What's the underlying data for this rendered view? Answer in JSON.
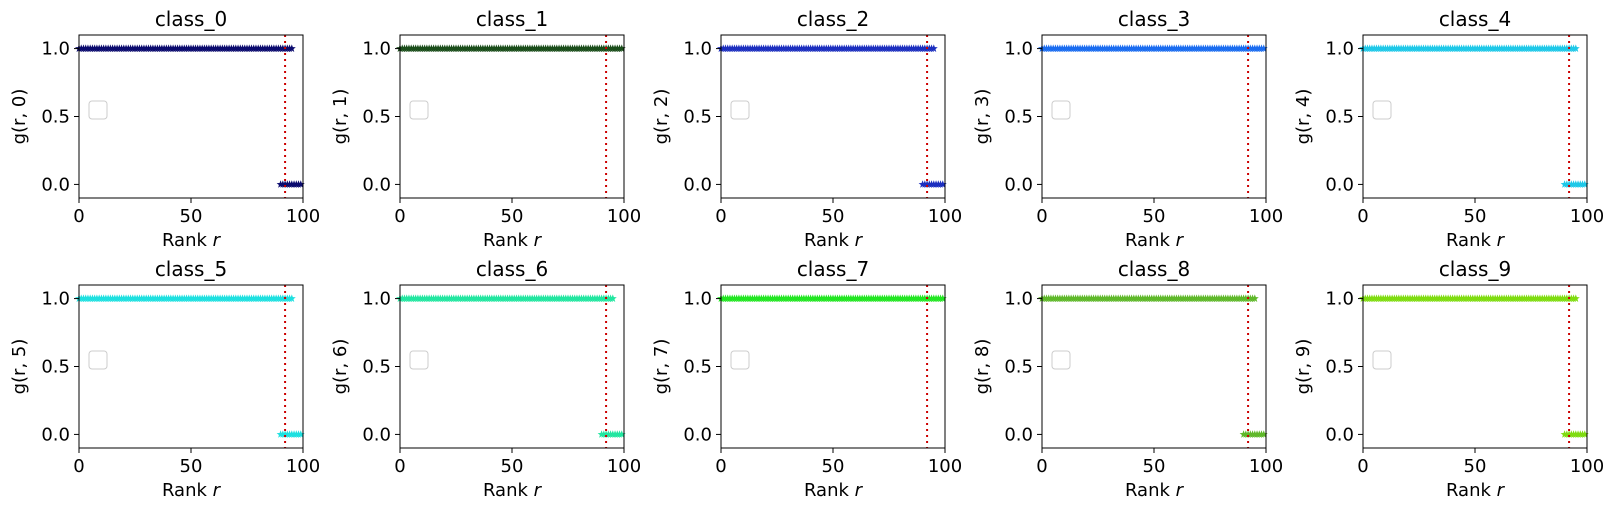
{
  "chart_data": [
    {
      "type": "scatter",
      "title": "class_0",
      "xlabel_text": "Rank ",
      "xlabel_var": "r",
      "ylabel": "g(r, 0)",
      "color": "#0b0b6e",
      "xlim": [
        0,
        100
      ],
      "ylim": [
        -0.1,
        1.1
      ],
      "xticks": [
        "0",
        "50",
        "100"
      ],
      "yticks": [
        "0.0",
        "0.5",
        "1.0"
      ],
      "series": [
        {
          "y": 1,
          "x_from": 0,
          "x_to": 95
        },
        {
          "y": 0,
          "x_from": 90,
          "x_to": 99
        }
      ],
      "vline_x": 92,
      "legend": "empty box, center-left"
    },
    {
      "type": "scatter",
      "title": "class_1",
      "xlabel_text": "Rank ",
      "xlabel_var": "r",
      "ylabel": "g(r, 1)",
      "color": "#1a4d1a",
      "xlim": [
        0,
        100
      ],
      "ylim": [
        -0.1,
        1.1
      ],
      "xticks": [
        "0",
        "50",
        "100"
      ],
      "yticks": [
        "0.0",
        "0.5",
        "1.0"
      ],
      "series": [
        {
          "y": 1,
          "x_from": 0,
          "x_to": 99
        }
      ],
      "vline_x": 92,
      "legend": "empty box, center-left"
    },
    {
      "type": "scatter",
      "title": "class_2",
      "xlabel_text": "Rank ",
      "xlabel_var": "r",
      "ylabel": "g(r, 2)",
      "color": "#1c2fbf",
      "xlim": [
        0,
        100
      ],
      "ylim": [
        -0.1,
        1.1
      ],
      "xticks": [
        "0",
        "50",
        "100"
      ],
      "yticks": [
        "0.0",
        "0.5",
        "1.0"
      ],
      "series": [
        {
          "y": 1,
          "x_from": 0,
          "x_to": 95
        },
        {
          "y": 0,
          "x_from": 90,
          "x_to": 99
        }
      ],
      "vline_x": 92,
      "legend": "empty box, center-left"
    },
    {
      "type": "scatter",
      "title": "class_3",
      "xlabel_text": "Rank ",
      "xlabel_var": "r",
      "ylabel": "g(r, 3)",
      "color": "#1a6cf0",
      "xlim": [
        0,
        100
      ],
      "ylim": [
        -0.1,
        1.1
      ],
      "xticks": [
        "0",
        "50",
        "100"
      ],
      "yticks": [
        "0.0",
        "0.5",
        "1.0"
      ],
      "series": [
        {
          "y": 1,
          "x_from": 0,
          "x_to": 99
        }
      ],
      "vline_x": 92,
      "legend": "empty box, center-left"
    },
    {
      "type": "scatter",
      "title": "class_4",
      "xlabel_text": "Rank ",
      "xlabel_var": "r",
      "ylabel": "g(r, 4)",
      "color": "#1ec8e8",
      "xlim": [
        0,
        100
      ],
      "ylim": [
        -0.1,
        1.1
      ],
      "xticks": [
        "0",
        "50",
        "100"
      ],
      "yticks": [
        "0.0",
        "0.5",
        "1.0"
      ],
      "series": [
        {
          "y": 1,
          "x_from": 0,
          "x_to": 95
        },
        {
          "y": 0,
          "x_from": 90,
          "x_to": 99
        }
      ],
      "vline_x": 92,
      "legend": "empty box, center-left"
    },
    {
      "type": "scatter",
      "title": "class_5",
      "xlabel_text": "Rank ",
      "xlabel_var": "r",
      "ylabel": "g(r, 5)",
      "color": "#1ee0e0",
      "xlim": [
        0,
        100
      ],
      "ylim": [
        -0.1,
        1.1
      ],
      "xticks": [
        "0",
        "50",
        "100"
      ],
      "yticks": [
        "0.0",
        "0.5",
        "1.0"
      ],
      "series": [
        {
          "y": 1,
          "x_from": 0,
          "x_to": 95
        },
        {
          "y": 0,
          "x_from": 90,
          "x_to": 99
        }
      ],
      "vline_x": 92,
      "legend": "empty box, center-left"
    },
    {
      "type": "scatter",
      "title": "class_6",
      "xlabel_text": "Rank ",
      "xlabel_var": "r",
      "ylabel": "g(r, 6)",
      "color": "#22e6a0",
      "xlim": [
        0,
        100
      ],
      "ylim": [
        -0.1,
        1.1
      ],
      "xticks": [
        "0",
        "50",
        "100"
      ],
      "yticks": [
        "0.0",
        "0.5",
        "1.0"
      ],
      "series": [
        {
          "y": 1,
          "x_from": 0,
          "x_to": 95
        },
        {
          "y": 0,
          "x_from": 90,
          "x_to": 99
        }
      ],
      "vline_x": 92,
      "legend": "empty box, center-left"
    },
    {
      "type": "scatter",
      "title": "class_7",
      "xlabel_text": "Rank ",
      "xlabel_var": "r",
      "ylabel": "g(r, 7)",
      "color": "#22e622",
      "xlim": [
        0,
        100
      ],
      "ylim": [
        -0.1,
        1.1
      ],
      "xticks": [
        "0",
        "50",
        "100"
      ],
      "yticks": [
        "0.0",
        "0.5",
        "1.0"
      ],
      "series": [
        {
          "y": 1,
          "x_from": 0,
          "x_to": 99
        }
      ],
      "vline_x": 92,
      "legend": "empty box, center-left"
    },
    {
      "type": "scatter",
      "title": "class_8",
      "xlabel_text": "Rank ",
      "xlabel_var": "r",
      "ylabel": "g(r, 8)",
      "color": "#5fb82a",
      "xlim": [
        0,
        100
      ],
      "ylim": [
        -0.1,
        1.1
      ],
      "xticks": [
        "0",
        "50",
        "100"
      ],
      "yticks": [
        "0.0",
        "0.5",
        "1.0"
      ],
      "series": [
        {
          "y": 1,
          "x_from": 0,
          "x_to": 95
        },
        {
          "y": 0,
          "x_from": 90,
          "x_to": 99
        }
      ],
      "vline_x": 92,
      "legend": "empty box, center-left"
    },
    {
      "type": "scatter",
      "title": "class_9",
      "xlabel_text": "Rank ",
      "xlabel_var": "r",
      "ylabel": "g(r, 9)",
      "color": "#7fdc10",
      "xlim": [
        0,
        100
      ],
      "ylim": [
        -0.1,
        1.1
      ],
      "xticks": [
        "0",
        "50",
        "100"
      ],
      "yticks": [
        "0.0",
        "0.5",
        "1.0"
      ],
      "series": [
        {
          "y": 1,
          "x_from": 0,
          "x_to": 95
        },
        {
          "y": 0,
          "x_from": 90,
          "x_to": 99
        }
      ],
      "vline_x": 92,
      "legend": "empty box, center-left"
    }
  ]
}
